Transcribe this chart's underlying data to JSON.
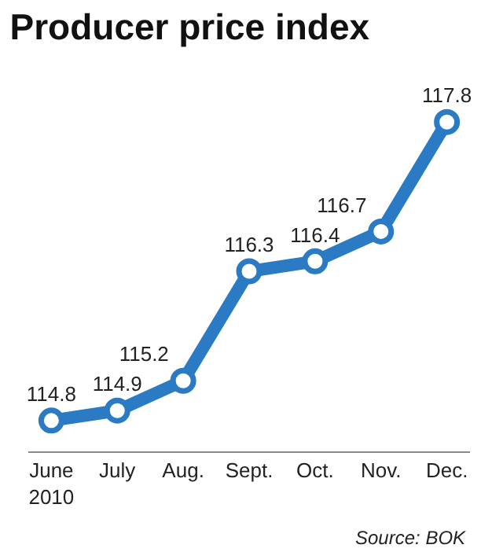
{
  "chart_data": {
    "type": "line",
    "title": "Producer price index",
    "categories": [
      "June\n2010",
      "July",
      "Aug.",
      "Sept.",
      "Oct.",
      "Nov.",
      "Dec."
    ],
    "values": [
      114.8,
      114.9,
      115.2,
      116.3,
      116.4,
      116.7,
      117.8
    ],
    "color": "#2a7bc4",
    "marker": "circle",
    "data_labels": true,
    "annotations": [
      "Source: BOK"
    ]
  }
}
